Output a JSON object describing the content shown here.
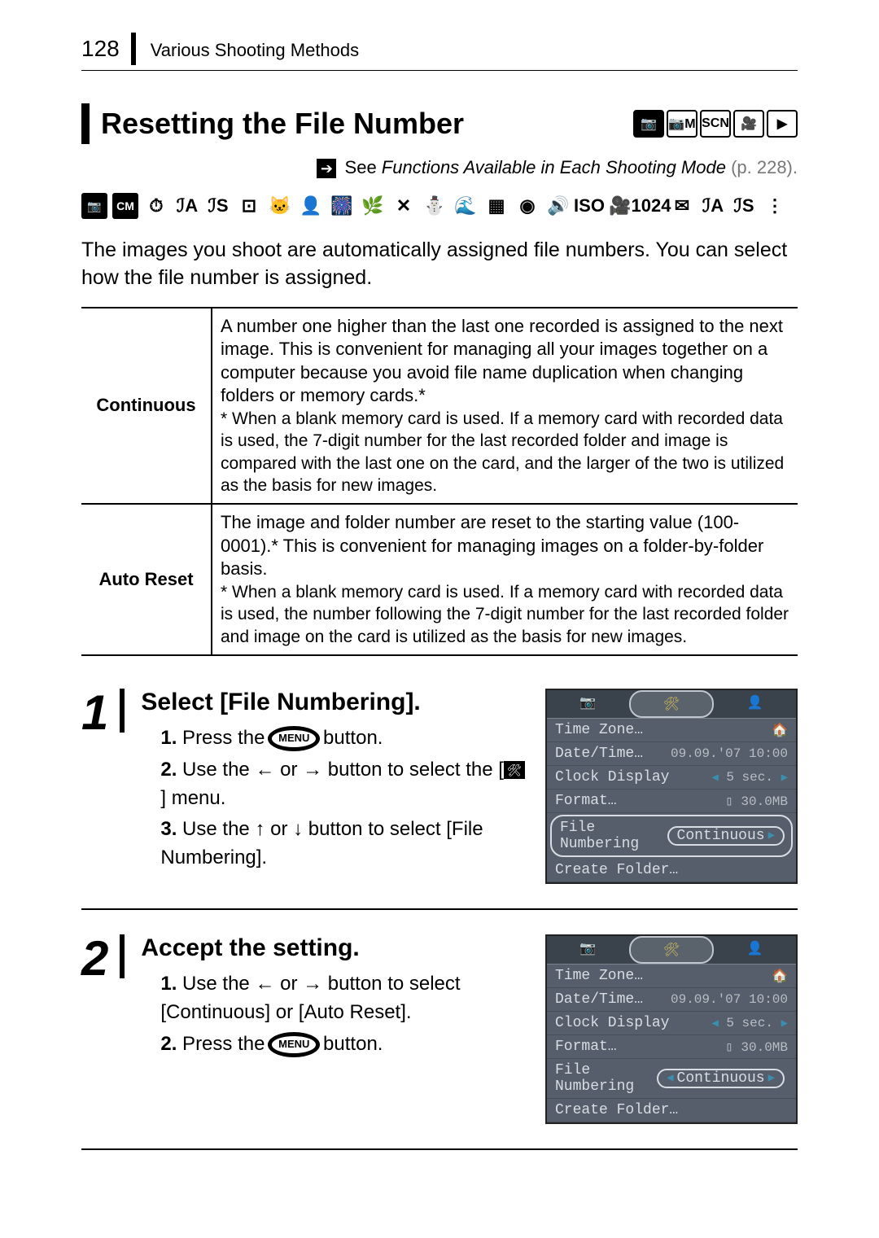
{
  "header": {
    "page_number": "128",
    "section": "Various Shooting Methods"
  },
  "title": "Resetting the File Number",
  "mode_icons_top": [
    "📷",
    "📷M",
    "SCN",
    "🎥",
    "▶"
  ],
  "see_line": {
    "prefix": "See ",
    "text": "Functions Available in Each Shooting Mode",
    "page": " (p. 228)."
  },
  "icon_strip": [
    "📷",
    "CM",
    "⏱",
    "ℐA",
    "ℐS",
    "⊡",
    "🐱",
    "👤",
    "🎆",
    "🌿",
    "✕",
    "⛄",
    "🌊",
    "▦",
    "◉",
    "🔊",
    "ISO",
    "🎥",
    "1024",
    "✉",
    "ℐA",
    "ℐS",
    "⋮"
  ],
  "intro": "The images you shoot are automatically assigned file numbers. You can select how the file number is assigned.",
  "table": {
    "rows": [
      {
        "label": "Continuous",
        "main": "A number one higher than the last one recorded is assigned to the next image. This is convenient for managing all your images together on a computer because you avoid file name duplication when changing folders or memory cards.*",
        "note": "* When a blank memory card is used. If a memory card with recorded data is used, the 7-digit number for the last recorded folder and image is compared with the last one on the card, and the larger of the two is utilized as the basis for new images."
      },
      {
        "label": "Auto Reset",
        "main": "The image and folder number are reset to the starting value (100-0001).* This is convenient for managing images on a folder-by-folder basis.",
        "note": "* When a blank memory card is used. If a memory card with recorded data is used, the number following the 7-digit number for the last recorded folder and image on the card is utilized as the basis for new images."
      }
    ]
  },
  "steps": [
    {
      "num": "1",
      "title": "Select [File Numbering].",
      "items": [
        {
          "n": "1.",
          "pre": "Press the ",
          "btn": "MENU",
          "post": " button."
        },
        {
          "n": "2.",
          "text": "Use the ← or → button to select the [🛠] menu."
        },
        {
          "n": "3.",
          "text": "Use the ↑ or ↓ button to select [File Numbering]."
        }
      ],
      "lcd_highlight": "row"
    },
    {
      "num": "2",
      "title": "Accept the setting.",
      "items": [
        {
          "n": "1.",
          "text": "Use the ← or → button to select [Continuous] or [Auto Reset]."
        },
        {
          "n": "2.",
          "pre": "Press the ",
          "btn": "MENU",
          "post": " button."
        }
      ],
      "lcd_highlight": "value"
    }
  ],
  "lcd": {
    "tabs": [
      "📷",
      "🛠",
      "👤"
    ],
    "rows": [
      {
        "k": "Time Zone…",
        "v": "🏠"
      },
      {
        "k": "Date/Time…",
        "v": "09.09.'07 10:00"
      },
      {
        "k": "Clock Display",
        "v": "5 sec.",
        "arrows": true
      },
      {
        "k": "Format…",
        "v": "▯ 30.0MB"
      },
      {
        "k": "File Numbering",
        "v": "Continuous",
        "special": true
      },
      {
        "k": "Create Folder…",
        "v": ""
      }
    ]
  }
}
